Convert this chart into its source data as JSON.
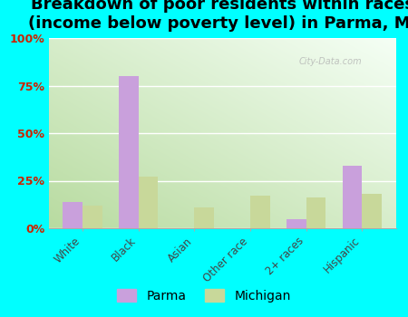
{
  "title": "Breakdown of poor residents within races\n(income below poverty level) in Parma, MI",
  "categories": [
    "White",
    "Black",
    "Asian",
    "Other race",
    "2+ races",
    "Hispanic"
  ],
  "parma_values": [
    14,
    80,
    0,
    0,
    5,
    33
  ],
  "michigan_values": [
    12,
    27,
    11,
    17,
    16,
    18
  ],
  "parma_color": "#c9a0dc",
  "michigan_color": "#c8d89a",
  "background_color": "#00ffff",
  "ylim": [
    0,
    100
  ],
  "yticks": [
    0,
    25,
    50,
    75,
    100
  ],
  "ytick_labels": [
    "0%",
    "25%",
    "50%",
    "75%",
    "100%"
  ],
  "title_fontsize": 13,
  "legend_labels": [
    "Parma",
    "Michigan"
  ],
  "bar_width": 0.35,
  "watermark": "City-Data.com",
  "grad_left": "#b8dba0",
  "grad_right": "#f0f8ee"
}
